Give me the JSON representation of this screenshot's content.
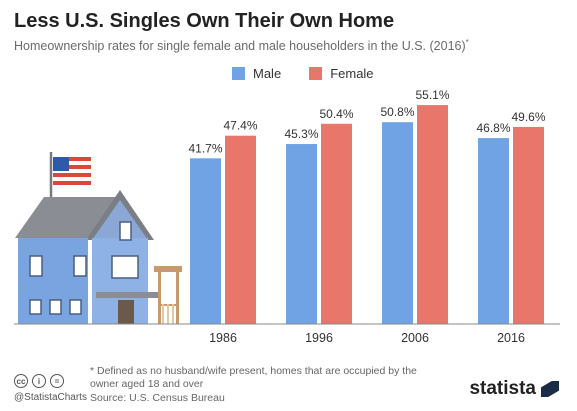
{
  "header": {
    "title": "Less U.S. Singles Own Their Own Home",
    "subtitle": "Homeownership rates for single female and male householders in the U.S. (2016)",
    "subtitle_mark": "*"
  },
  "legend": [
    {
      "label": "Male",
      "color": "#6fa3e3"
    },
    {
      "label": "Female",
      "color": "#e8766a"
    }
  ],
  "chart_data": {
    "type": "bar",
    "categories": [
      "1986",
      "1996",
      "2006",
      "2016"
    ],
    "series": [
      {
        "name": "Male",
        "values": [
          41.7,
          45.3,
          50.8,
          46.8
        ],
        "color": "#6fa3e3"
      },
      {
        "name": "Female",
        "values": [
          47.4,
          50.4,
          55.1,
          49.6
        ],
        "color": "#e8766a"
      }
    ],
    "value_labels": {
      "Male": [
        "41.7%",
        "45.3%",
        "50.8%",
        "46.8%"
      ],
      "Female": [
        "47.4%",
        "50.4%",
        "55.1%",
        "49.6%"
      ]
    },
    "ylim": [
      0,
      100
    ],
    "grid": false,
    "legend_position": "top-center"
  },
  "footer": {
    "footnote": "* Defined as no husband/wife present, homes that are occupied by the owner aged 18 and over",
    "handle": "@StatistaCharts",
    "source": "Source: U.S. Census Bureau",
    "brand": "statista",
    "cc_icons": [
      "cc-icon",
      "by-icon",
      "nd-icon"
    ]
  }
}
